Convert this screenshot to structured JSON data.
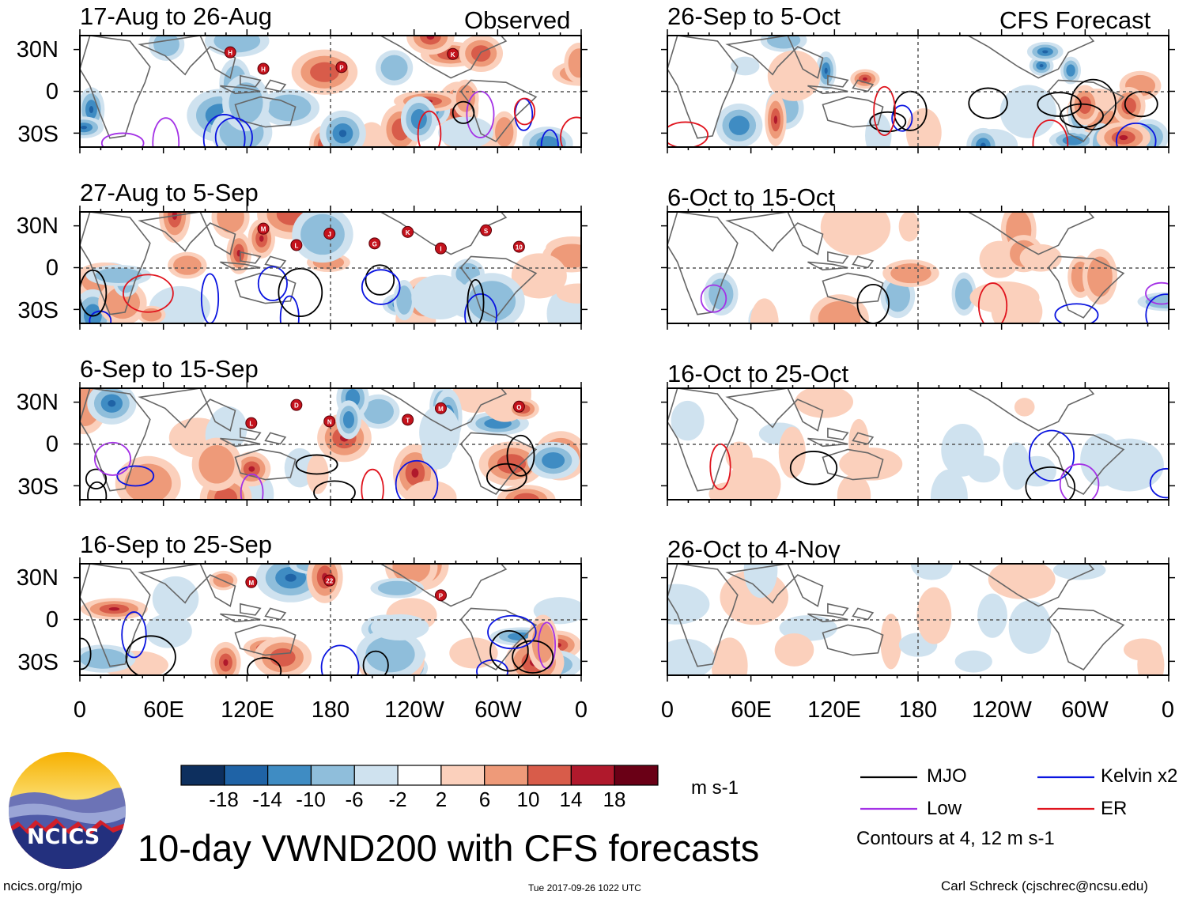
{
  "header": {
    "left_title": "Observed",
    "right_title": "CFS Forecast"
  },
  "observed_panels": [
    {
      "period": "17-Aug to 26-Aug"
    },
    {
      "period": "27-Aug to 5-Sep"
    },
    {
      "period": "6-Sep to 15-Sep"
    },
    {
      "period": "16-Sep to 25-Sep"
    }
  ],
  "forecast_panels": [
    {
      "period": "26-Sep to 5-Oct"
    },
    {
      "period": "6-Oct to 15-Oct"
    },
    {
      "period": "16-Oct to 25-Oct"
    },
    {
      "period": "26-Oct to 4-Nov"
    }
  ],
  "axes": {
    "lat_labels": [
      "30N",
      "0",
      "30S"
    ],
    "lon_labels": [
      "0",
      "60E",
      "120E",
      "180",
      "120W",
      "60W",
      "0"
    ]
  },
  "storm_markers": [
    [
      "H",
      "P",
      "K",
      "H"
    ],
    [
      "M",
      "G",
      "S",
      "L",
      "K",
      "10",
      "J",
      "I"
    ],
    [
      "D",
      "T",
      "O",
      "N",
      "M",
      "L"
    ],
    [
      "22",
      "P",
      "M"
    ]
  ],
  "colorbar": {
    "ticks": [
      "-18",
      "-14",
      "-10",
      "-6",
      "-2",
      "2",
      "6",
      "10",
      "14",
      "18"
    ],
    "colors": [
      "#0d2f5e",
      "#1f63a6",
      "#3f8cc3",
      "#8fbedb",
      "#cfe2ef",
      "#ffffff",
      "#fbd0bc",
      "#ee9a79",
      "#d85c4a",
      "#b0192c",
      "#6a0016"
    ],
    "units": "m s-1"
  },
  "legend": {
    "items": [
      {
        "label": "MJO",
        "color": "#000000"
      },
      {
        "label": "Kelvin x2",
        "color": "#0a14e0"
      },
      {
        "label": "Low",
        "color": "#a432e6"
      },
      {
        "label": "ER",
        "color": "#e0141e"
      }
    ],
    "note": "Contours at 4, 12 m s-1"
  },
  "logo": {
    "text": "NCICS"
  },
  "footer": {
    "main_title": "10-day VWND200 with CFS forecasts",
    "website": "ncics.org/mjo",
    "timestamp": "Tue 2017-09-26 1022 UTC",
    "author": "Carl Schreck (cjschrec@ncsu.edu)"
  }
}
